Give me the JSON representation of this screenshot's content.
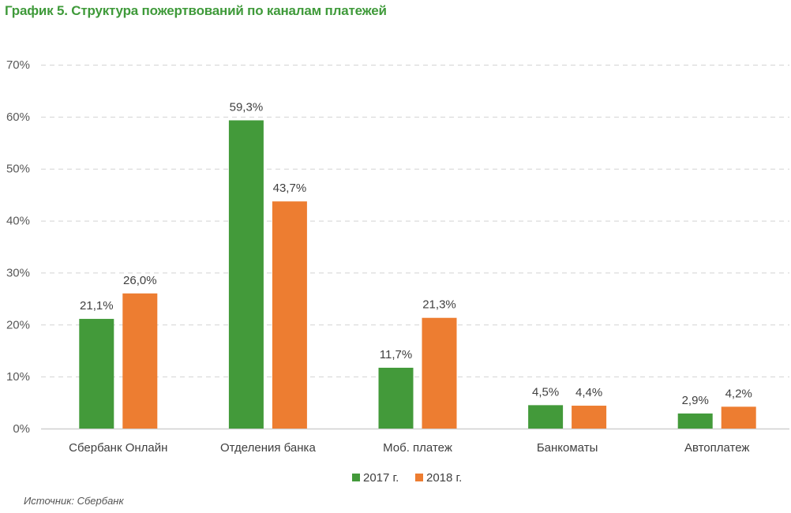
{
  "chart_data": {
    "type": "bar",
    "title": "График 5. Структура пожертвований по каналам платежей",
    "categories": [
      "Сбербанк Онлайн",
      "Отделения банка",
      "Моб. платеж",
      "Банкоматы",
      "Автоплатеж"
    ],
    "series": [
      {
        "name": "2017 г.",
        "color": "#439a3a",
        "values": [
          21.1,
          59.3,
          11.7,
          4.5,
          2.9
        ],
        "labels": [
          "21,1%",
          "59,3%",
          "11,7%",
          "4,5%",
          "2,9%"
        ]
      },
      {
        "name": "2018 г.",
        "color": "#ed7d31",
        "values": [
          26.0,
          43.7,
          21.3,
          4.4,
          4.2
        ],
        "labels": [
          "26,0%",
          "43,7%",
          "21,3%",
          "4,4%",
          "4,2%"
        ]
      }
    ],
    "xlabel": "",
    "ylabel": "",
    "ylim": [
      0,
      70
    ],
    "yticks": [
      0,
      10,
      20,
      30,
      40,
      50,
      60,
      70
    ],
    "ytick_labels": [
      "0%",
      "10%",
      "20%",
      "30%",
      "40%",
      "50%",
      "60%",
      "70%"
    ],
    "grid": true,
    "legend_position": "bottom"
  },
  "source": "Источник: Сбербанк"
}
